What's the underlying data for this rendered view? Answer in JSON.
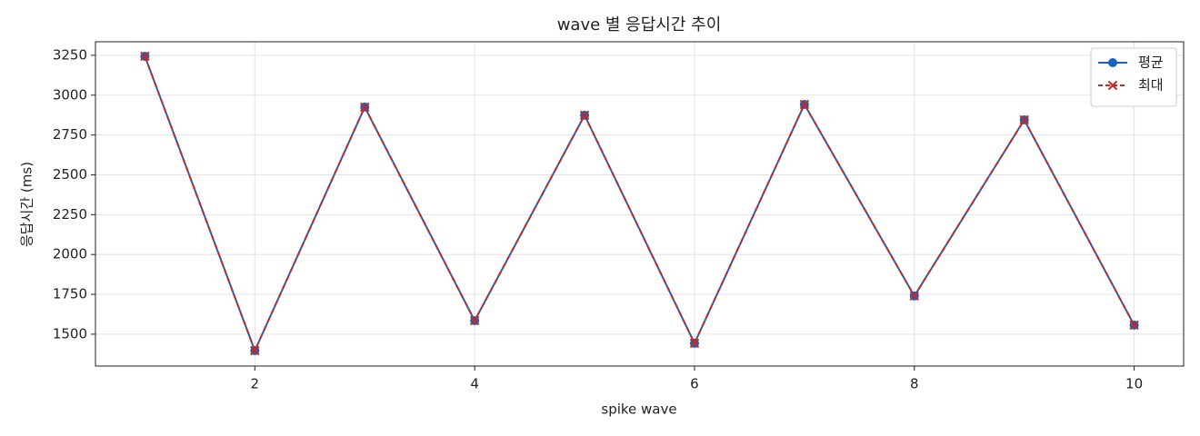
{
  "chart_data": {
    "type": "line",
    "title": "wave 별 응답시간 추이",
    "x_label": "spike wave",
    "y_label": "응답시간 (ms)",
    "x": [
      1,
      2,
      3,
      4,
      5,
      6,
      7,
      8,
      9,
      10
    ],
    "series": [
      {
        "name": "평균",
        "color": "#1565c0",
        "marker": "o",
        "linestyle": "solid",
        "values": [
          3244,
          1397,
          2925,
          1585,
          2874,
          1443,
          2942,
          1740,
          2845,
          1557
        ]
      },
      {
        "name": "최대",
        "color": "#c62828",
        "marker": "x",
        "linestyle": "dashed",
        "values": [
          3244,
          1397,
          2925,
          1585,
          2874,
          1443,
          2942,
          1740,
          2845,
          1557
        ]
      }
    ],
    "xlim": [
      0.55,
      10.45
    ],
    "xticks": [
      2,
      4,
      6,
      8,
      10
    ],
    "ylim": [
      1300,
      3335
    ],
    "yticks": [
      1500,
      1750,
      2000,
      2250,
      2500,
      2750,
      3000,
      3250
    ],
    "grid": true,
    "legend": "upper right"
  }
}
